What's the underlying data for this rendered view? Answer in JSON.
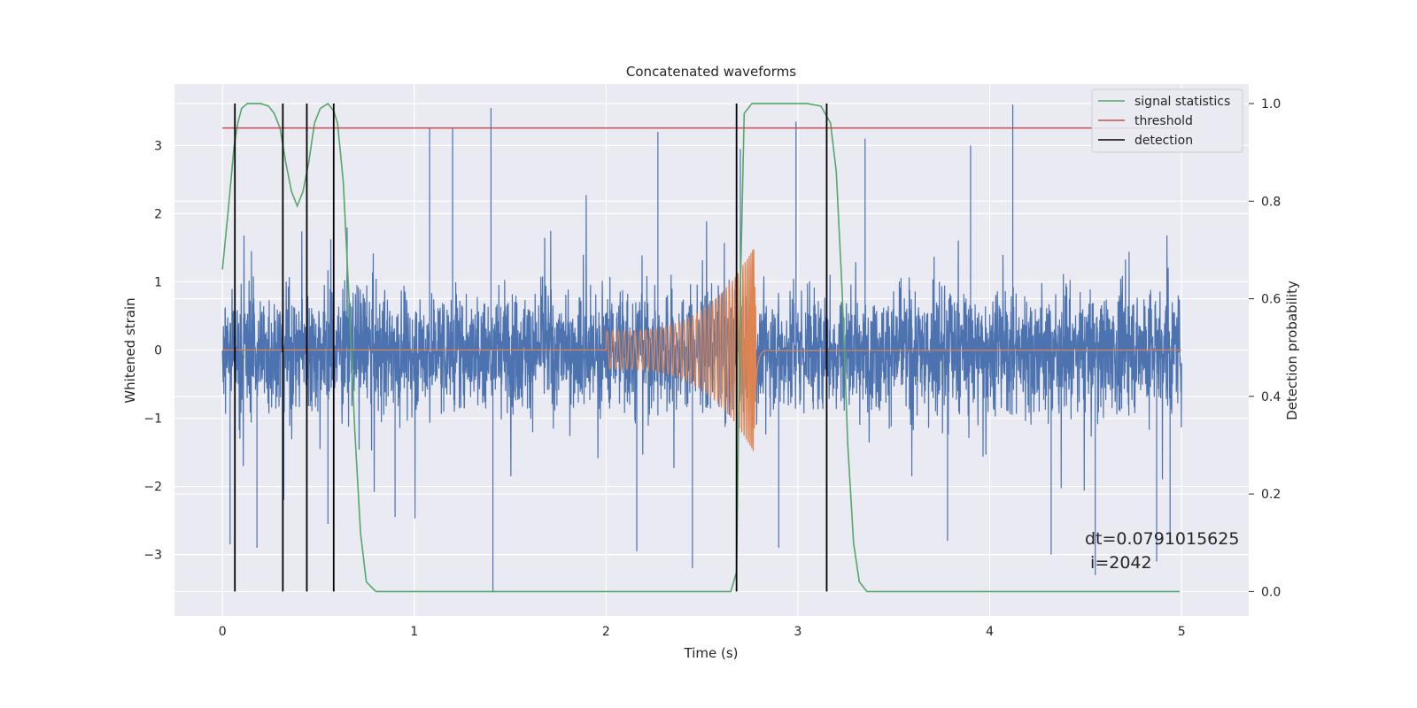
{
  "chart_data": {
    "type": "line",
    "title": "Concatenated waveforms",
    "xlabel": "Time (s)",
    "ylabel_left": "Whitened strain",
    "ylabel_right": "Detection probability",
    "xlim": [
      -0.25,
      5.35
    ],
    "ylim_left": [
      -3.9,
      3.9
    ],
    "ylim_right": [
      -0.05,
      1.04
    ],
    "x_ticks": [
      0,
      1,
      2,
      3,
      4,
      5
    ],
    "y_left_ticks": [
      -3,
      -2,
      -1,
      0,
      1,
      2,
      3
    ],
    "y_right_ticks": [
      0.0,
      0.2,
      0.4,
      0.6,
      0.8,
      1.0
    ],
    "x_tick_labels": [
      "0",
      "1",
      "2",
      "3",
      "4",
      "5"
    ],
    "y_left_tick_labels": [
      "−3",
      "−2",
      "−1",
      "0",
      "1",
      "2",
      "3"
    ],
    "y_right_tick_labels": [
      "0.0",
      "0.2",
      "0.4",
      "0.6",
      "0.8",
      "1.0"
    ],
    "grid": true,
    "legend_position": "top-right",
    "colors": {
      "background": "#eaeaf2",
      "grid": "#ffffff",
      "strain": "#4c72b0",
      "template": "#dd8452",
      "signal_statistics": "#55a868",
      "threshold": "#c44e52",
      "detection": "#000000"
    },
    "series": [
      {
        "name": "signal statistics",
        "axis": "right",
        "x": [
          0.0,
          0.03,
          0.06,
          0.08,
          0.1,
          0.13,
          0.16,
          0.2,
          0.24,
          0.27,
          0.3,
          0.33,
          0.36,
          0.39,
          0.42,
          0.45,
          0.48,
          0.51,
          0.55,
          0.58,
          0.6,
          0.63,
          0.66,
          0.69,
          0.72,
          0.75,
          0.8,
          2.65,
          2.68,
          2.7,
          2.72,
          2.76,
          2.8,
          3.05,
          3.12,
          3.17,
          3.2,
          3.23,
          3.26,
          3.29,
          3.32,
          3.36,
          4.99
        ],
        "values": [
          0.66,
          0.78,
          0.91,
          0.96,
          0.99,
          1.0,
          1.0,
          1.0,
          0.995,
          0.98,
          0.95,
          0.88,
          0.82,
          0.79,
          0.82,
          0.88,
          0.96,
          0.99,
          1.0,
          0.985,
          0.96,
          0.84,
          0.6,
          0.33,
          0.12,
          0.02,
          0.0,
          0.0,
          0.04,
          0.62,
          0.98,
          1.0,
          1.0,
          1.0,
          0.995,
          0.96,
          0.86,
          0.62,
          0.3,
          0.1,
          0.02,
          0.0,
          0.0
        ]
      },
      {
        "name": "threshold",
        "axis": "right",
        "x": [
          0.0,
          4.99
        ],
        "values": [
          0.95,
          0.95
        ]
      },
      {
        "name": "detection",
        "axis": "right",
        "x_positions": [
          0.065,
          0.315,
          0.44,
          0.58,
          2.68,
          3.15
        ],
        "range": [
          0.0,
          1.0
        ]
      },
      {
        "axis": "left",
        "description_type": "whitened strain noise",
        "x_range": [
          0.0,
          5.0
        ],
        "typical_amplitude": 0.6,
        "spikes": [
          {
            "x": 0.04,
            "y": -2.85
          },
          {
            "x": 0.18,
            "y": -2.9
          },
          {
            "x": 0.32,
            "y": -2.2
          },
          {
            "x": 0.55,
            "y": -2.55
          },
          {
            "x": 0.9,
            "y": -2.45
          },
          {
            "x": 1.08,
            "y": 3.25
          },
          {
            "x": 1.2,
            "y": 3.25
          },
          {
            "x": 1.4,
            "y": 3.55
          },
          {
            "x": 1.41,
            "y": -3.55
          },
          {
            "x": 2.16,
            "y": -2.95
          },
          {
            "x": 2.27,
            "y": 3.2
          },
          {
            "x": 2.45,
            "y": -3.2
          },
          {
            "x": 2.7,
            "y": 2.95
          },
          {
            "x": 2.9,
            "y": -2.9
          },
          {
            "x": 2.99,
            "y": 3.35
          },
          {
            "x": 3.35,
            "y": 3.1
          },
          {
            "x": 3.78,
            "y": -2.8
          },
          {
            "x": 3.9,
            "y": 3.0
          },
          {
            "x": 4.12,
            "y": 3.6
          },
          {
            "x": 4.32,
            "y": -3.0
          },
          {
            "x": 4.55,
            "y": -3.3
          },
          {
            "x": 4.87,
            "y": -3.1
          },
          {
            "x": 4.94,
            "y": -2.75
          }
        ]
      },
      {
        "axis": "left",
        "description_type": "injected chirp template",
        "x_range": [
          0.0,
          5.0
        ],
        "chirp_start": 2.0,
        "chirp_peak": 2.77,
        "start_amplitude": 0.28,
        "peak_amplitude": 1.5
      }
    ],
    "annotations": [
      "dt=0.0791015625",
      " i=2042"
    ]
  }
}
